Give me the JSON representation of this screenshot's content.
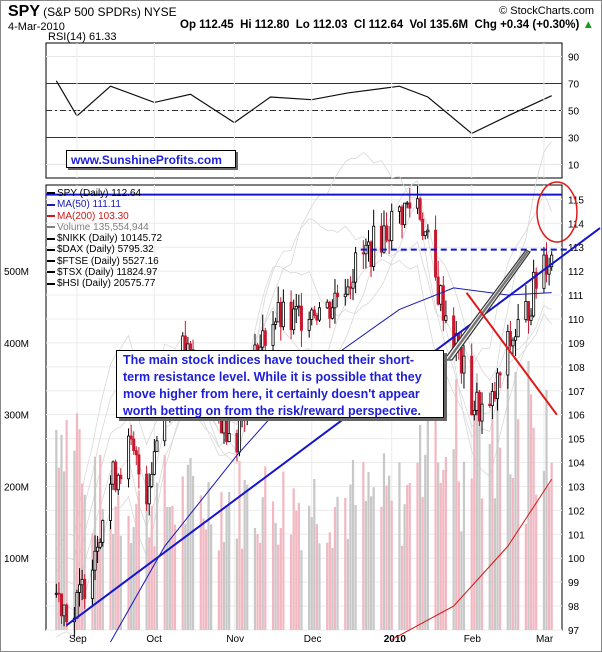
{
  "header": {
    "symbol": "SPY",
    "name": "(S&P 500 SPDRs)",
    "exchange": "NYSE",
    "brand": "© StockCharts.com",
    "date": "4-Mar-2010",
    "open": "Op 112.45",
    "high": "Hi 112.80",
    "low": "Lo 112.03",
    "close": "Cl 112.64",
    "volume": "Vol 135.6M",
    "change": "Chg +0.34 (+0.30%)",
    "up_arrow": "▲"
  },
  "rsi": {
    "label": "RSI(14) 61.33",
    "levels": [
      70,
      50,
      30
    ],
    "tick_labels": [
      "90",
      "70",
      "50",
      "30",
      "10"
    ],
    "ylim": [
      0,
      100
    ]
  },
  "watermark": "www.SunshineProfits.com",
  "legend": [
    {
      "text": "SPY (Daily) 112.64",
      "color": "#000000"
    },
    {
      "text": "MA(50) 111.11",
      "color": "#1a1ab4"
    },
    {
      "text": "MA(200) 103.30",
      "color": "#d01818"
    },
    {
      "text": "Volume 135,554,944",
      "color": "#808080"
    },
    {
      "text": "$NIKK (Daily) 10145.72",
      "color": "#000000"
    },
    {
      "text": "$DAX (Daily) 5795.32",
      "color": "#000000"
    },
    {
      "text": "$FTSE (Daily) 5527.16",
      "color": "#000000"
    },
    {
      "text": "$TSX (Daily) 11824.97",
      "color": "#000000"
    },
    {
      "text": "$HSI (Daily) 20575.77",
      "color": "#000000"
    }
  ],
  "annotation": "The main stock indices have touched their short-term resistance level. While it is possible that they move higher from here, it certainly doesn't appear worth betting on from the risk/reward perspective.",
  "chart_data": {
    "type": "candlestick",
    "price_ylim": [
      97,
      115.6
    ],
    "price_ticks": [
      "115",
      "114",
      "113",
      "112",
      "111",
      "110",
      "109",
      "108",
      "107",
      "106",
      "105",
      "104",
      "103",
      "102",
      "101",
      "100",
      "99",
      "98",
      "97"
    ],
    "volume_ticks": [
      "500M",
      "400M",
      "300M",
      "200M",
      "100M"
    ],
    "volume_ylim": [
      0,
      620
    ],
    "x_labels": [
      "Sep",
      "Oct",
      "Nov",
      "Dec",
      "2010",
      "Feb",
      "Mar"
    ],
    "resistance_levels": [
      115.2,
      112.9
    ],
    "colors": {
      "up": "#000000",
      "down": "#c81830",
      "ma50": "#1a1ab4",
      "ma200": "#d01818",
      "trend": "#1515d0",
      "highlight": "#e01818"
    },
    "spy_close_path": [
      [
        "2009-08-24",
        98.5
      ],
      [
        "2009-08-31",
        97.6
      ],
      [
        "2009-09-07",
        100.2
      ],
      [
        "2009-09-14",
        103.1
      ],
      [
        "2009-09-21",
        104.6
      ],
      [
        "2009-09-28",
        102.9
      ],
      [
        "2009-10-05",
        106.7
      ],
      [
        "2009-10-12",
        108.6
      ],
      [
        "2009-10-19",
        107.8
      ],
      [
        "2009-10-26",
        106.0
      ],
      [
        "2009-11-02",
        105.2
      ],
      [
        "2009-11-09",
        108.3
      ],
      [
        "2009-11-16",
        110.1
      ],
      [
        "2009-11-23",
        109.8
      ],
      [
        "2009-11-30",
        110.6
      ],
      [
        "2009-12-07",
        110.4
      ],
      [
        "2009-12-14",
        111.6
      ],
      [
        "2009-12-21",
        112.6
      ],
      [
        "2009-12-28",
        113.5
      ],
      [
        "2010-01-04",
        114.4
      ],
      [
        "2010-01-11",
        115.0
      ],
      [
        "2010-01-18",
        111.5
      ],
      [
        "2010-01-25",
        109.3
      ],
      [
        "2010-02-01",
        106.5
      ],
      [
        "2010-02-08",
        106.0
      ],
      [
        "2010-02-15",
        108.8
      ],
      [
        "2010-02-22",
        110.2
      ],
      [
        "2010-03-01",
        112.6
      ]
    ],
    "ma50_path": [
      [
        "2009-09-14",
        96.5
      ],
      [
        "2009-10-05",
        100.5
      ],
      [
        "2009-11-02",
        104.3
      ],
      [
        "2009-12-01",
        107.8
      ],
      [
        "2010-01-04",
        110.4
      ],
      [
        "2010-01-25",
        111.3
      ],
      [
        "2010-02-15",
        111.0
      ],
      [
        "2010-03-04",
        111.1
      ]
    ],
    "ma200_path": [
      [
        "2010-01-01",
        96.6
      ],
      [
        "2010-01-25",
        98.0
      ],
      [
        "2010-02-15",
        100.5
      ],
      [
        "2010-03-04",
        103.3
      ]
    ],
    "rsi_path": [
      [
        "2009-08-24",
        72
      ],
      [
        "2009-09-01",
        46
      ],
      [
        "2009-09-14",
        68
      ],
      [
        "2009-10-01",
        56
      ],
      [
        "2009-10-15",
        62
      ],
      [
        "2009-11-01",
        41
      ],
      [
        "2009-11-15",
        60
      ],
      [
        "2009-12-01",
        58
      ],
      [
        "2009-12-15",
        63
      ],
      [
        "2010-01-04",
        68
      ],
      [
        "2010-01-15",
        60
      ],
      [
        "2010-02-01",
        33
      ],
      [
        "2010-02-15",
        46
      ],
      [
        "2010-03-04",
        61
      ]
    ]
  }
}
